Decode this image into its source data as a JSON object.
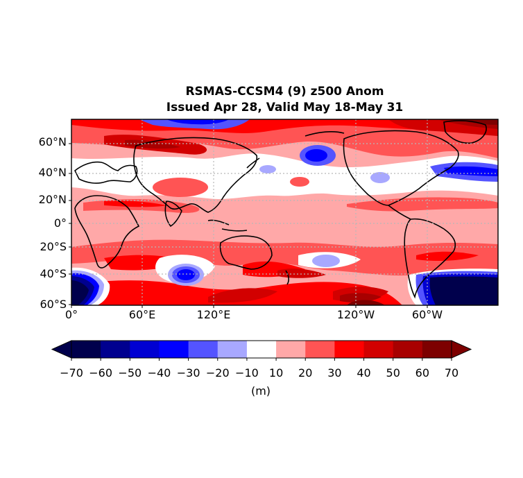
{
  "title": {
    "line1": "RSMAS-CCSM4 (9) z500 Anom",
    "line2": "Issued Apr 28, Valid May 18-May 31"
  },
  "map": {
    "lat_ticks": [
      "60°N",
      "40°N",
      "20°N",
      "0°",
      "20°S",
      "40°S",
      "60°S"
    ],
    "lon_ticks": [
      "0°",
      "60°E",
      "120°E",
      "120°W",
      "60°W"
    ],
    "gridlines": true,
    "coastlines": true,
    "fill_style": "contourf"
  },
  "colorbar": {
    "orientation": "horizontal",
    "extend": "both",
    "levels": [
      -70,
      -60,
      -50,
      -40,
      -30,
      -20,
      -10,
      10,
      20,
      30,
      40,
      50,
      60,
      70
    ],
    "tick_labels": [
      "−70",
      "−60",
      "−50",
      "−40",
      "−30",
      "−20",
      "−10",
      "10",
      "20",
      "30",
      "40",
      "50",
      "60",
      "70"
    ],
    "colors": [
      "#00004c",
      "#00008f",
      "#0000d2",
      "#0000ff",
      "#5454ff",
      "#a8a8ff",
      "#ffffff",
      "#ffa8a8",
      "#ff5454",
      "#ff0000",
      "#d20000",
      "#a80000",
      "#7d0000"
    ],
    "under_color": "#00004c",
    "over_color": "#7d0000",
    "unit": "(m)"
  }
}
